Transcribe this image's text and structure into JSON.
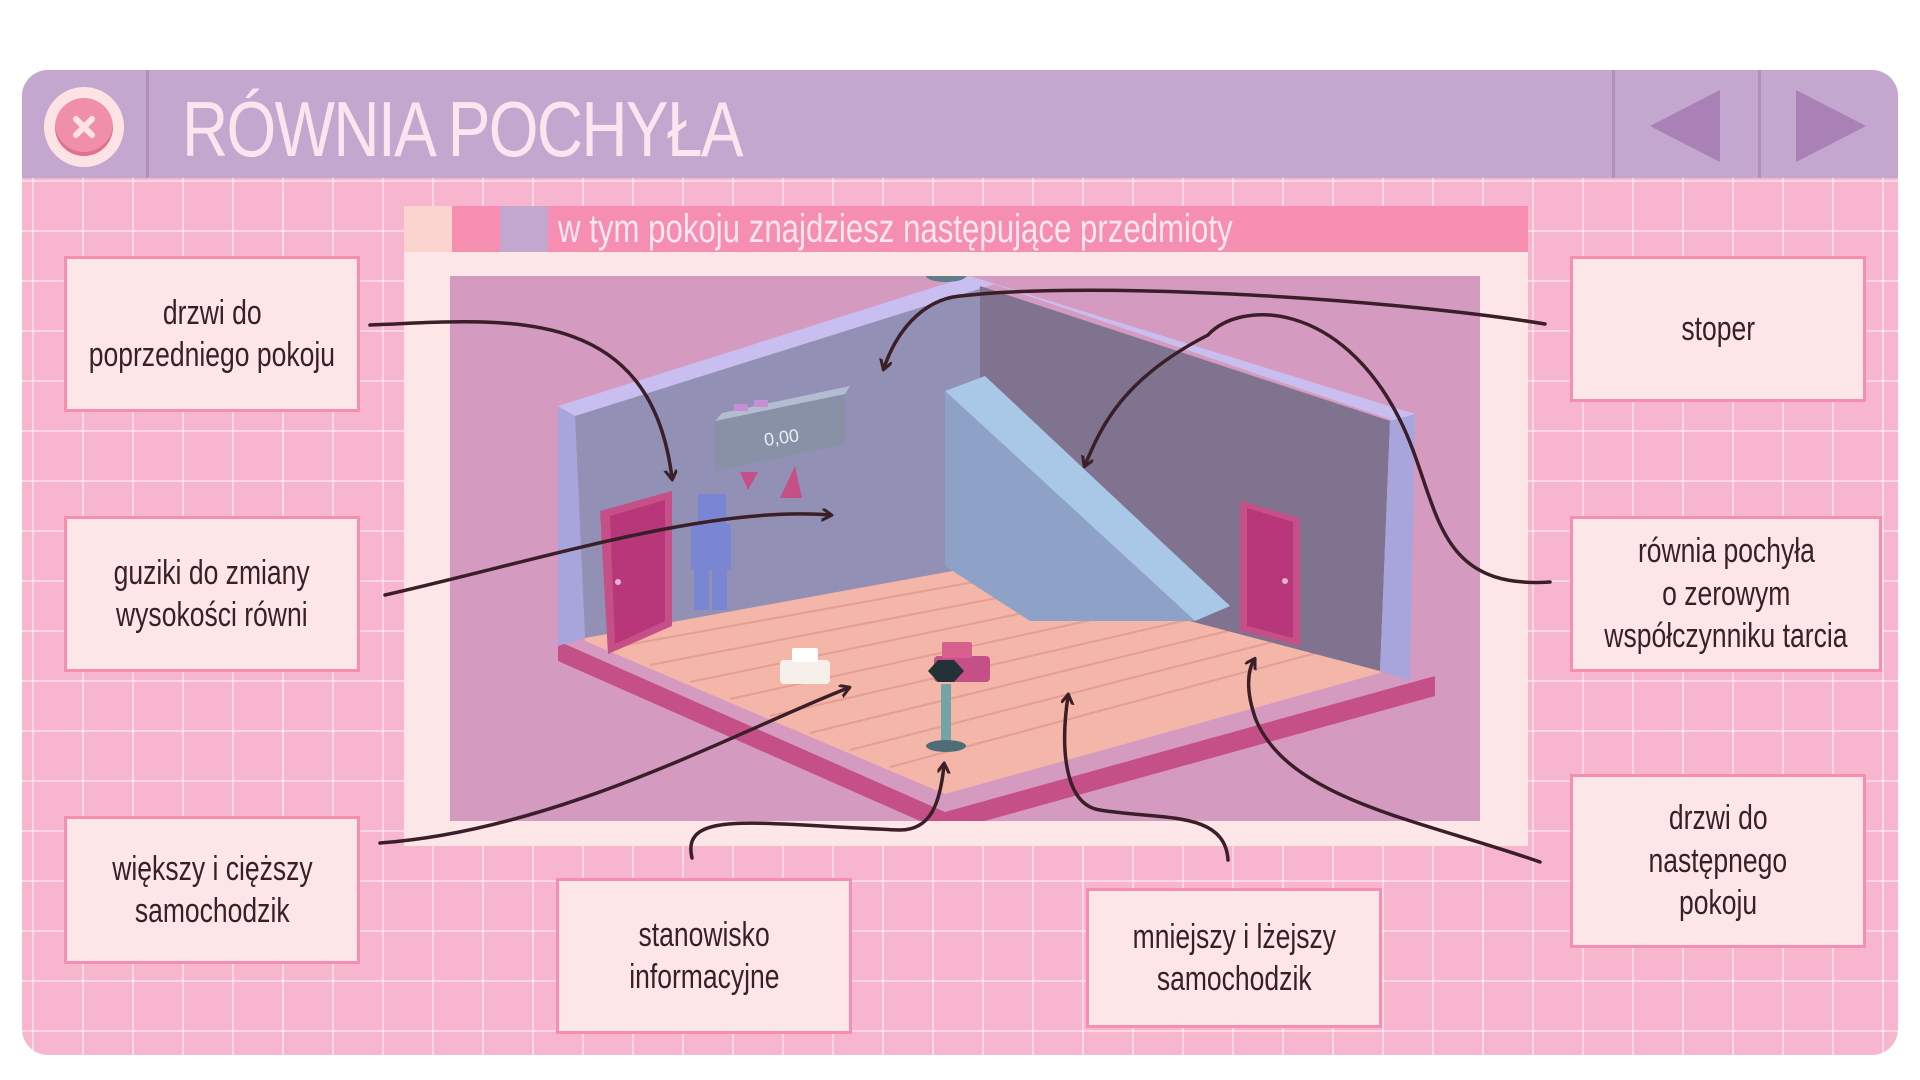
{
  "window": {
    "title": "RÓWNIA POCHYŁA",
    "close_icon": "close-x-icon",
    "prev_icon": "triangle-left-icon",
    "next_icon": "triangle-right-icon"
  },
  "panel": {
    "header": "w tym pokoju znajdziesz następujące przedmioty"
  },
  "scene": {
    "timer_value": "0,00"
  },
  "labels": {
    "prev_door": [
      "drzwi do",
      "poprzedniego pokoju"
    ],
    "buttons": [
      "guziki do zmiany",
      "wysokości równi"
    ],
    "big_car": [
      "większy i cięższy",
      "samochodzik"
    ],
    "info_station": [
      "stanowisko",
      "informacyjne"
    ],
    "small_car": [
      "mniejszy i lżejszy",
      "samochodzik"
    ],
    "stopwatch": [
      "stoper"
    ],
    "ramp": [
      "równia pochyła",
      "o zerowym",
      "współczynniku tarcia"
    ],
    "next_door": [
      "drzwi do",
      "następnego",
      "pokoju"
    ]
  },
  "colors": {
    "background_pink": "#f7b5ce",
    "titlebar_purple": "#c3a7cf",
    "title_text": "#fbe6ef",
    "accent_pink": "#f58eb0",
    "box_fill": "#fde6e8",
    "arrow": "#3a1e28"
  }
}
